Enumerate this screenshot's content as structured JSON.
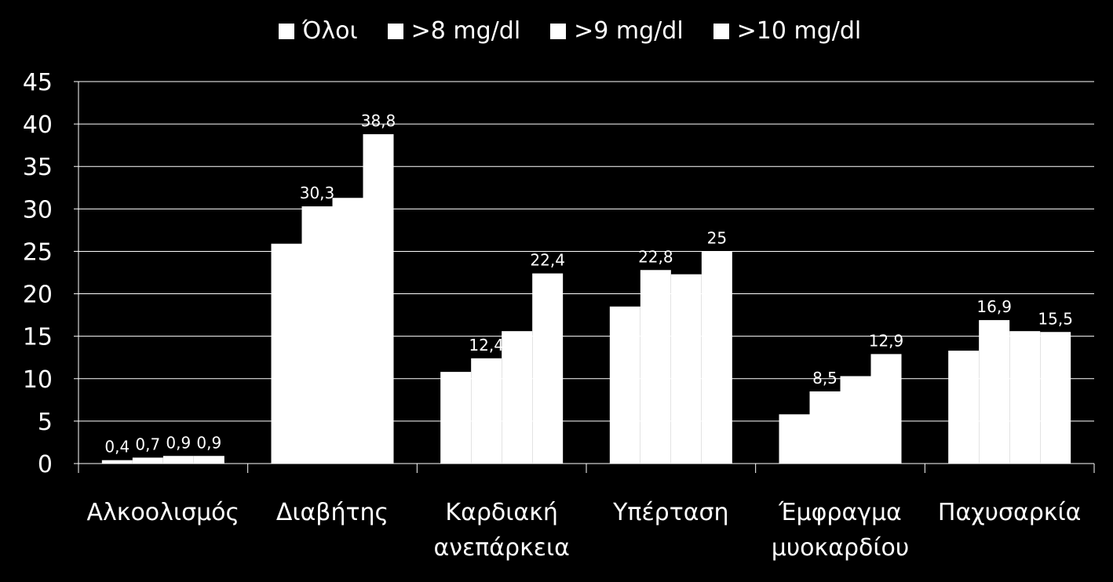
{
  "chart_data": {
    "type": "bar",
    "categories": [
      [
        "Αλκοολισμός"
      ],
      [
        "Διαβήτης"
      ],
      [
        "Καρδιακή",
        "ανεπάρκεια"
      ],
      [
        "Υπέρταση"
      ],
      [
        "Έμφραγμα",
        "μυοκαρδίου"
      ],
      [
        "Παχυσαρκία"
      ]
    ],
    "series": [
      {
        "name": "Όλοι",
        "values": [
          0.4,
          25.9,
          10.8,
          18.5,
          5.8,
          13.3
        ]
      },
      {
        "name": ">8 mg/dl",
        "values": [
          0.7,
          30.3,
          12.4,
          22.8,
          8.5,
          16.9
        ]
      },
      {
        "name": ">9 mg/dl",
        "values": [
          0.9,
          31.3,
          15.6,
          22.3,
          10.3,
          15.6
        ]
      },
      {
        "name": ">10 mg/dl",
        "values": [
          0.9,
          38.8,
          22.4,
          25,
          12.9,
          15.5
        ]
      }
    ],
    "data_labels": [
      [
        "0,4",
        "0,7",
        "0,9",
        "0,9"
      ],
      [
        "",
        "30,3",
        "",
        "38,8"
      ],
      [
        "",
        "12,4",
        "",
        "22,4"
      ],
      [
        "",
        "22,8",
        "",
        "25"
      ],
      [
        "",
        "8,5",
        "",
        "12,9"
      ],
      [
        "",
        "16,9",
        "",
        "15,5"
      ]
    ],
    "ylim": [
      0,
      45
    ],
    "yticks": [
      0,
      5,
      10,
      15,
      20,
      25,
      30,
      35,
      40,
      45
    ],
    "grid": true,
    "legend_position": "top",
    "colors": {
      "background": "#000000",
      "bars": "#ffffff",
      "grid": "#ffffff",
      "text": "#ffffff"
    }
  }
}
